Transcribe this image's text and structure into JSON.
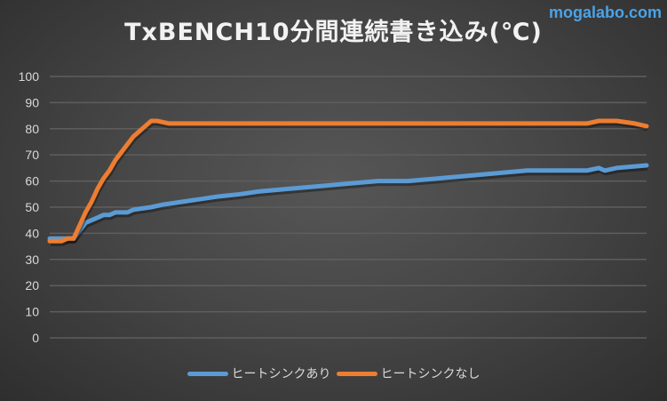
{
  "header": {
    "title": "TxBENCH10分間連続書き込み(℃)",
    "watermark": "mogalabo.com"
  },
  "colors": {
    "heatsink": "#5b9bd5",
    "no_heatsink": "#ed7d31",
    "grid": "#5e5e5e"
  },
  "legend": {
    "items": [
      {
        "label": "ヒートシンクあり",
        "color": "#5b9bd5"
      },
      {
        "label": "ヒートシンクなし",
        "color": "#ed7d31"
      }
    ]
  },
  "chart_data": {
    "type": "line",
    "title": "TxBENCH10分間連続書き込み(℃)",
    "xlabel": "",
    "ylabel": "",
    "ylim": [
      0,
      100
    ],
    "yticks": [
      0,
      10,
      20,
      30,
      40,
      50,
      60,
      70,
      80,
      90,
      100
    ],
    "grid": true,
    "legend_position": "bottom",
    "x_note": "time index over 10 minutes (no x tick labels shown); x normalized 0-100",
    "series": [
      {
        "name": "ヒートシンクあり",
        "color": "#5b9bd5",
        "x": [
          0,
          4,
          5,
          6,
          7,
          8,
          9,
          10,
          11,
          13,
          14,
          17,
          19,
          22,
          25,
          28,
          32,
          35,
          40,
          45,
          50,
          55,
          60,
          65,
          70,
          75,
          80,
          85,
          90,
          92,
          93,
          95,
          100
        ],
        "values": [
          38,
          38,
          41,
          44,
          45,
          46,
          47,
          47,
          48,
          48,
          49,
          50,
          51,
          52,
          53,
          54,
          55,
          56,
          57,
          58,
          59,
          60,
          60,
          61,
          62,
          63,
          64,
          64,
          64,
          65,
          64,
          65,
          66
        ]
      },
      {
        "name": "ヒートシンクなし",
        "color": "#ed7d31",
        "x": [
          0,
          2,
          3,
          4,
          5,
          6,
          7,
          8,
          9,
          10,
          11,
          12,
          13,
          14,
          15,
          16,
          17,
          18,
          20,
          25,
          30,
          35,
          40,
          45,
          50,
          55,
          60,
          65,
          70,
          75,
          80,
          85,
          90,
          92,
          95,
          98,
          100
        ],
        "values": [
          37,
          37,
          38,
          38,
          43,
          48,
          52,
          57,
          61,
          64,
          68,
          71,
          74,
          77,
          79,
          81,
          83,
          83,
          82,
          82,
          82,
          82,
          82,
          82,
          82,
          82,
          82,
          82,
          82,
          82,
          82,
          82,
          82,
          83,
          83,
          82,
          81
        ]
      }
    ]
  }
}
